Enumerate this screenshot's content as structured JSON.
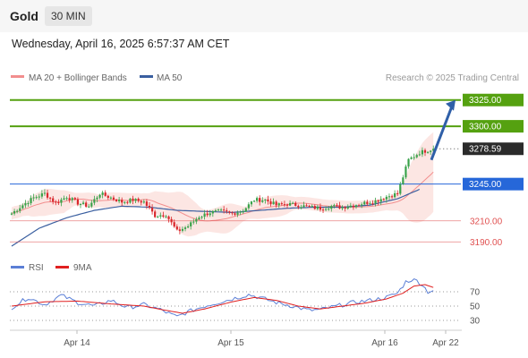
{
  "header": {
    "title": "Gold",
    "timeframe": "30 MIN",
    "datetime": "Wednesday, April 16, 2025 6:57:37 AM CET"
  },
  "legend": {
    "ma20": "MA 20 + Bollinger Bands",
    "ma50": "MA 50",
    "credit": "Research © 2025 Trading Central"
  },
  "rsi_legend": {
    "rsi": "RSI",
    "ma": "9MA"
  },
  "colors": {
    "bull": "#39a24a",
    "bear": "#d9262b",
    "ma20": "#f28e8e",
    "ma50": "#3a5fa0",
    "band": "#fbe0dc",
    "resistance": "#55a110",
    "pivot": "#2667d9",
    "support": "#e05050",
    "current": "#2b2b2b",
    "rsi": "#5b7fd6",
    "rsi_ma": "#e02020",
    "arrow": "#2f5fa8"
  },
  "chart_data": [
    {
      "type": "candlestick",
      "title": "Gold",
      "timeframe": "30 MIN",
      "x_ticks": [
        "Apr 14",
        "Apr 15",
        "Apr 16",
        "Apr 22"
      ],
      "ylim": [
        3180,
        3335
      ],
      "levels": [
        {
          "value": 3325.0,
          "label": "3325.00",
          "kind": "resistance"
        },
        {
          "value": 3300.0,
          "label": "3300.00",
          "kind": "resistance"
        },
        {
          "value": 3278.59,
          "label": "3278.59",
          "kind": "current"
        },
        {
          "value": 3245.0,
          "label": "3245.00",
          "kind": "pivot"
        },
        {
          "value": 3210.0,
          "label": "3210.00",
          "kind": "support"
        },
        {
          "value": 3190.0,
          "label": "3190.00",
          "kind": "support"
        }
      ],
      "close_anchors": [
        [
          0,
          3217
        ],
        [
          4,
          3225
        ],
        [
          8,
          3232
        ],
        [
          12,
          3236
        ],
        [
          16,
          3227
        ],
        [
          20,
          3233
        ],
        [
          24,
          3227
        ],
        [
          28,
          3224
        ],
        [
          32,
          3236
        ],
        [
          36,
          3232
        ],
        [
          40,
          3228
        ],
        [
          44,
          3230
        ],
        [
          48,
          3228
        ],
        [
          52,
          3215
        ],
        [
          56,
          3216
        ],
        [
          60,
          3200
        ],
        [
          64,
          3205
        ],
        [
          68,
          3214
        ],
        [
          72,
          3218
        ],
        [
          76,
          3219
        ],
        [
          80,
          3217
        ],
        [
          84,
          3220
        ],
        [
          88,
          3230
        ],
        [
          92,
          3230
        ],
        [
          96,
          3225
        ],
        [
          100,
          3226
        ],
        [
          104,
          3225
        ],
        [
          108,
          3223
        ],
        [
          112,
          3222
        ],
        [
          116,
          3224
        ],
        [
          120,
          3223
        ],
        [
          124,
          3225
        ],
        [
          128,
          3227
        ],
        [
          132,
          3229
        ],
        [
          136,
          3233
        ],
        [
          140,
          3236
        ],
        [
          144,
          3268
        ],
        [
          148,
          3275
        ],
        [
          152,
          3278
        ],
        [
          153,
          3278.59
        ]
      ],
      "ma50_anchors": [
        [
          0,
          3186
        ],
        [
          10,
          3203
        ],
        [
          20,
          3213
        ],
        [
          30,
          3220
        ],
        [
          40,
          3224
        ],
        [
          50,
          3223
        ],
        [
          60,
          3220
        ],
        [
          70,
          3219
        ],
        [
          80,
          3218
        ],
        [
          90,
          3220
        ],
        [
          100,
          3222
        ],
        [
          110,
          3223
        ],
        [
          120,
          3223
        ],
        [
          130,
          3225
        ],
        [
          140,
          3231
        ],
        [
          148,
          3240
        ]
      ],
      "projection": {
        "from": 3268,
        "to": 3325
      }
    },
    {
      "type": "line",
      "title": "RSI",
      "ylim": [
        20,
        90
      ],
      "y_ticks": [
        30,
        50,
        70
      ],
      "dotted_levels": [
        30,
        50,
        70
      ],
      "rsi_anchors": [
        [
          0,
          48
        ],
        [
          6,
          62
        ],
        [
          12,
          52
        ],
        [
          18,
          65
        ],
        [
          24,
          55
        ],
        [
          30,
          50
        ],
        [
          36,
          58
        ],
        [
          42,
          48
        ],
        [
          48,
          52
        ],
        [
          54,
          45
        ],
        [
          58,
          38
        ],
        [
          60,
          35
        ],
        [
          64,
          42
        ],
        [
          70,
          50
        ],
        [
          76,
          56
        ],
        [
          80,
          60
        ],
        [
          86,
          66
        ],
        [
          90,
          62
        ],
        [
          96,
          55
        ],
        [
          102,
          50
        ],
        [
          108,
          44
        ],
        [
          112,
          45
        ],
        [
          118,
          50
        ],
        [
          124,
          55
        ],
        [
          130,
          58
        ],
        [
          136,
          62
        ],
        [
          140,
          68
        ],
        [
          143,
          84
        ],
        [
          146,
          88
        ],
        [
          149,
          80
        ],
        [
          151,
          70
        ],
        [
          153,
          72
        ]
      ],
      "ma_anchors": [
        [
          0,
          50
        ],
        [
          12,
          56
        ],
        [
          24,
          57
        ],
        [
          36,
          53
        ],
        [
          48,
          50
        ],
        [
          56,
          44
        ],
        [
          62,
          40
        ],
        [
          70,
          46
        ],
        [
          80,
          56
        ],
        [
          88,
          62
        ],
        [
          96,
          58
        ],
        [
          104,
          50
        ],
        [
          112,
          46
        ],
        [
          120,
          50
        ],
        [
          128,
          54
        ],
        [
          136,
          60
        ],
        [
          142,
          68
        ],
        [
          146,
          78
        ],
        [
          150,
          80
        ],
        [
          153,
          76
        ]
      ]
    }
  ]
}
